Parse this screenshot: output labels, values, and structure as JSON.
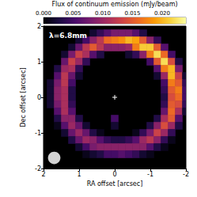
{
  "chart_data": {
    "type": "heatmap",
    "annotations": [
      "λ=6.8mm"
    ],
    "x_label": "RA offset [arcsec]",
    "y_label": "Dec offset [arcsec]",
    "xlim": [
      2,
      -2
    ],
    "xticks": [
      2,
      1,
      0,
      -1,
      -2
    ],
    "ylim": [
      -2,
      2
    ],
    "yticks": [
      -2,
      -1,
      0,
      1,
      2
    ],
    "grid": false,
    "colorbar": {
      "label": "Flux of continuum emission (mJy/beam)",
      "range": [
        0,
        0.024
      ],
      "ticks": [
        {
          "value": 0,
          "label": "0.000"
        },
        {
          "value": 0.005,
          "label": "0.005"
        },
        {
          "value": 0.01,
          "label": "0.010"
        },
        {
          "value": 0.015,
          "label": "0.015"
        },
        {
          "value": 0.02,
          "label": "0.020"
        }
      ]
    },
    "points": [
      {
        "x": 0,
        "y": 0,
        "marker": "cross",
        "color": "#ffffff"
      }
    ],
    "beam": {
      "x": 1.7,
      "y": -1.7,
      "width": 0.35,
      "height": 0.35,
      "color": "#d3d3d3"
    },
    "cells": [
      [
        0.6,
        1.8,
        0.002
      ],
      [
        0.4,
        1.8,
        0.004
      ],
      [
        0.2,
        1.8,
        0.006
      ],
      [
        0,
        1.8,
        0.008
      ],
      [
        -0.2,
        1.8,
        0.008
      ],
      [
        -0.4,
        1.8,
        0.008
      ],
      [
        -0.6,
        1.8,
        0.006
      ],
      [
        -0.8,
        1.8,
        0.003
      ],
      [
        1.0,
        1.6,
        0.002
      ],
      [
        0.8,
        1.6,
        0.005
      ],
      [
        0.6,
        1.6,
        0.009
      ],
      [
        0.4,
        1.6,
        0.012
      ],
      [
        0.2,
        1.6,
        0.016
      ],
      [
        0,
        1.6,
        0.017
      ],
      [
        -0.2,
        1.6,
        0.018
      ],
      [
        -0.4,
        1.6,
        0.02
      ],
      [
        -0.6,
        1.6,
        0.019
      ],
      [
        -0.8,
        1.6,
        0.015
      ],
      [
        -1.0,
        1.6,
        0.009
      ],
      [
        -1.2,
        1.6,
        0.004
      ],
      [
        1.2,
        1.4,
        0.002
      ],
      [
        1.0,
        1.4,
        0.007
      ],
      [
        0.8,
        1.4,
        0.012
      ],
      [
        0.6,
        1.4,
        0.015
      ],
      [
        0.4,
        1.4,
        0.012
      ],
      [
        0.2,
        1.4,
        0.009
      ],
      [
        0,
        1.4,
        0.009
      ],
      [
        -0.2,
        1.4,
        0.009
      ],
      [
        -0.4,
        1.4,
        0.01
      ],
      [
        -0.6,
        1.4,
        0.017
      ],
      [
        -0.8,
        1.4,
        0.021
      ],
      [
        -1.0,
        1.4,
        0.021
      ],
      [
        -1.2,
        1.4,
        0.015
      ],
      [
        -1.4,
        1.4,
        0.006
      ],
      [
        1.4,
        1.2,
        0.002
      ],
      [
        1.2,
        1.2,
        0.008
      ],
      [
        1.0,
        1.2,
        0.013
      ],
      [
        0.8,
        1.2,
        0.011
      ],
      [
        0.6,
        1.2,
        0.006
      ],
      [
        0.4,
        1.2,
        0.003
      ],
      [
        -0.4,
        1.2,
        0.002
      ],
      [
        -0.6,
        1.2,
        0.004
      ],
      [
        -0.8,
        1.2,
        0.009
      ],
      [
        -1.0,
        1.2,
        0.017
      ],
      [
        -1.2,
        1.2,
        0.022
      ],
      [
        -1.4,
        1.2,
        0.016
      ],
      [
        -1.6,
        1.2,
        0.005
      ],
      [
        1.4,
        1.0,
        0.007
      ],
      [
        1.2,
        1.0,
        0.013
      ],
      [
        1.0,
        1.0,
        0.01
      ],
      [
        0.8,
        1.0,
        0.004
      ],
      [
        -1.0,
        1.0,
        0.005
      ],
      [
        -1.2,
        1.0,
        0.015
      ],
      [
        -1.4,
        1.0,
        0.022
      ],
      [
        -1.6,
        1.0,
        0.014
      ],
      [
        -1.8,
        1.0,
        0.003
      ],
      [
        1.6,
        0.8,
        0.003
      ],
      [
        1.4,
        0.8,
        0.01
      ],
      [
        1.2,
        0.8,
        0.011
      ],
      [
        1.0,
        0.8,
        0.004
      ],
      [
        -1.2,
        0.8,
        0.006
      ],
      [
        -1.4,
        0.8,
        0.017
      ],
      [
        -1.6,
        0.8,
        0.02
      ],
      [
        -1.8,
        0.8,
        0.008
      ],
      [
        1.6,
        0.6,
        0.006
      ],
      [
        1.4,
        0.6,
        0.012
      ],
      [
        1.2,
        0.6,
        0.007
      ],
      [
        1.0,
        0.6,
        0.002
      ],
      [
        -1.2,
        0.6,
        0.002
      ],
      [
        -1.4,
        0.6,
        0.01
      ],
      [
        -1.6,
        0.6,
        0.02
      ],
      [
        -1.8,
        0.6,
        0.013
      ],
      [
        -2.0,
        0.6,
        0.002
      ],
      [
        1.8,
        0.4,
        0.002
      ],
      [
        1.6,
        0.4,
        0.008
      ],
      [
        1.4,
        0.4,
        0.012
      ],
      [
        1.2,
        0.4,
        0.005
      ],
      [
        -1.4,
        0.4,
        0.005
      ],
      [
        -1.6,
        0.4,
        0.017
      ],
      [
        -1.8,
        0.4,
        0.015
      ],
      [
        -2.0,
        0.4,
        0.004
      ],
      [
        1.8,
        0.2,
        0.002
      ],
      [
        1.6,
        0.2,
        0.009
      ],
      [
        1.4,
        0.2,
        0.011
      ],
      [
        1.2,
        0.2,
        0.003
      ],
      [
        -1.4,
        0.2,
        0.004
      ],
      [
        -1.6,
        0.2,
        0.015
      ],
      [
        -1.8,
        0.2,
        0.017
      ],
      [
        -2.0,
        0.2,
        0.005
      ],
      [
        1.8,
        0,
        0.002
      ],
      [
        1.6,
        0,
        0.009
      ],
      [
        1.4,
        0,
        0.011
      ],
      [
        1.2,
        0,
        0.003
      ],
      [
        -1.4,
        0,
        0.003
      ],
      [
        -1.6,
        0,
        0.014
      ],
      [
        -1.8,
        0,
        0.016
      ],
      [
        -2.0,
        0,
        0.005
      ],
      [
        1.8,
        -0.2,
        0.002
      ],
      [
        1.6,
        -0.2,
        0.008
      ],
      [
        1.4,
        -0.2,
        0.011
      ],
      [
        1.2,
        -0.2,
        0.004
      ],
      [
        -1.4,
        -0.2,
        0.004
      ],
      [
        -1.6,
        -0.2,
        0.015
      ],
      [
        -1.8,
        -0.2,
        0.014
      ],
      [
        -2.0,
        -0.2,
        0.004
      ],
      [
        1.6,
        -0.4,
        0.006
      ],
      [
        1.4,
        -0.4,
        0.011
      ],
      [
        1.2,
        -0.4,
        0.006
      ],
      [
        -1.4,
        -0.4,
        0.007
      ],
      [
        -1.6,
        -0.4,
        0.016
      ],
      [
        -1.8,
        -0.4,
        0.011
      ],
      [
        -2.0,
        -0.4,
        0.002
      ],
      [
        1.6,
        -0.6,
        0.003
      ],
      [
        1.4,
        -0.6,
        0.009
      ],
      [
        1.2,
        -0.6,
        0.009
      ],
      [
        1.0,
        -0.6,
        0.003
      ],
      [
        0,
        -0.6,
        0.005
      ],
      [
        -1.2,
        -0.6,
        0.003
      ],
      [
        -1.4,
        -0.6,
        0.011
      ],
      [
        -1.6,
        -0.6,
        0.015
      ],
      [
        -1.8,
        -0.6,
        0.006
      ],
      [
        1.6,
        -0.8,
        0.001
      ],
      [
        1.4,
        -0.8,
        0.006
      ],
      [
        1.2,
        -0.8,
        0.01
      ],
      [
        1.0,
        -0.8,
        0.007
      ],
      [
        0.8,
        -0.8,
        0.002
      ],
      [
        0,
        -0.8,
        0.002
      ],
      [
        -1.0,
        -0.8,
        0.003
      ],
      [
        -1.2,
        -0.8,
        0.009
      ],
      [
        -1.4,
        -0.8,
        0.014
      ],
      [
        -1.6,
        -0.8,
        0.01
      ],
      [
        -1.8,
        -0.8,
        0.003
      ],
      [
        1.4,
        -1.0,
        0.002
      ],
      [
        1.2,
        -1.0,
        0.007
      ],
      [
        1.0,
        -1.0,
        0.01
      ],
      [
        0.8,
        -1.0,
        0.007
      ],
      [
        0.6,
        -1.0,
        0.003
      ],
      [
        0.4,
        -1.0,
        0.001
      ],
      [
        -0.6,
        -1.0,
        0.001
      ],
      [
        -0.8,
        -1.0,
        0.004
      ],
      [
        -1.0,
        -1.0,
        0.008
      ],
      [
        -1.2,
        -1.0,
        0.013
      ],
      [
        -1.4,
        -1.0,
        0.01
      ],
      [
        -1.6,
        -1.0,
        0.004
      ],
      [
        1.2,
        -1.2,
        0.003
      ],
      [
        1.0,
        -1.2,
        0.007
      ],
      [
        0.8,
        -1.2,
        0.01
      ],
      [
        0.6,
        -1.2,
        0.009
      ],
      [
        0.4,
        -1.2,
        0.006
      ],
      [
        0.2,
        -1.2,
        0.004
      ],
      [
        0,
        -1.2,
        0.003
      ],
      [
        -0.2,
        -1.2,
        0.003
      ],
      [
        -0.4,
        -1.2,
        0.004
      ],
      [
        -0.6,
        -1.2,
        0.006
      ],
      [
        -0.8,
        -1.2,
        0.01
      ],
      [
        -1.0,
        -1.2,
        0.012
      ],
      [
        -1.2,
        -1.2,
        0.009
      ],
      [
        -1.4,
        -1.2,
        0.004
      ],
      [
        -1.6,
        -1.2,
        0.001
      ],
      [
        1.0,
        -1.4,
        0.002
      ],
      [
        0.8,
        -1.4,
        0.005
      ],
      [
        0.6,
        -1.4,
        0.008
      ],
      [
        0.4,
        -1.4,
        0.009
      ],
      [
        0.2,
        -1.4,
        0.009
      ],
      [
        0,
        -1.4,
        0.009
      ],
      [
        -0.2,
        -1.4,
        0.009
      ],
      [
        -0.4,
        -1.4,
        0.009
      ],
      [
        -0.6,
        -1.4,
        0.009
      ],
      [
        -0.8,
        -1.4,
        0.009
      ],
      [
        -1.0,
        -1.4,
        0.006
      ],
      [
        -1.2,
        -1.4,
        0.003
      ],
      [
        -1.4,
        -1.4,
        0.001
      ],
      [
        0.8,
        -1.6,
        0.001
      ],
      [
        0.6,
        -1.6,
        0.002
      ],
      [
        0.4,
        -1.6,
        0.003
      ],
      [
        0.2,
        -1.6,
        0.005
      ],
      [
        0,
        -1.6,
        0.005
      ],
      [
        -0.2,
        -1.6,
        0.006
      ],
      [
        -0.4,
        -1.6,
        0.005
      ],
      [
        -0.6,
        -1.6,
        0.004
      ],
      [
        -0.8,
        -1.6,
        0.002
      ],
      [
        -1.0,
        -1.6,
        0.001
      ]
    ]
  }
}
